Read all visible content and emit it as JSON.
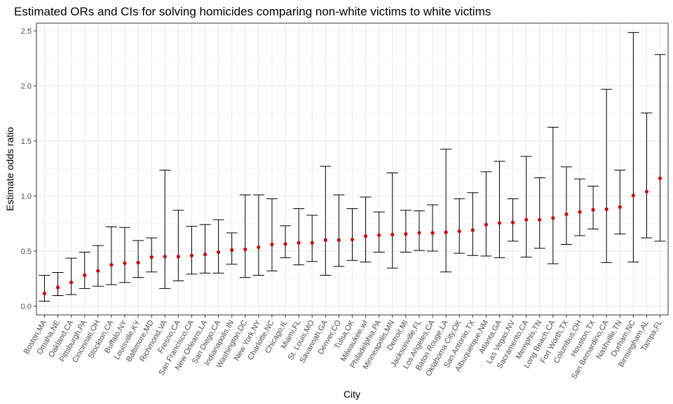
{
  "chart_data": {
    "type": "scatter",
    "title": "Estimated ORs and CIs for solving homicides comparing non-white victims to white victims",
    "xlabel": "City",
    "ylabel": "Estimate odds ratio",
    "ylim": [
      -0.08,
      2.57
    ],
    "yticks": [
      0.0,
      0.5,
      1.0,
      1.5,
      2.0,
      2.5
    ],
    "ytick_labels": [
      "0.0",
      "0.5",
      "1.0",
      "1.5",
      "2.0",
      "2.5"
    ],
    "grid": true,
    "point_color": "#cc0000",
    "errorbar_color": "#000000",
    "categories": [
      "Boston,MA",
      "Omaha,NE",
      "Oakland,CA",
      "Pittsburgh,PA",
      "Cincinnati,OH",
      "Stockton,CA",
      "Buffalo,NY",
      "Louisville,KY",
      "Baltimore,MD",
      "Richmond,VA",
      "Fresno,CA",
      "San Francisco,CA",
      "New Orleans,LA",
      "San Diego,CA",
      "Indianapolis,IN",
      "Washington,DC",
      "New York,NY",
      "Charlotte,NC",
      "Chicago,IL",
      "Miami,FL",
      "St. Louis,MO",
      "Savannah,GA",
      "Denver,CO",
      "Tulsa,OK",
      "Milwaukee,wI",
      "Philadelphia,PA",
      "Minneapolis,MN",
      "Detroit,MI",
      "Jacksonville,FL",
      "Los Angeles,CA",
      "Baton Rouge,LA",
      "Oklahoma City,OK",
      "San Antonio,TX",
      "Albuquerque,NM",
      "Atlanta,GA",
      "Las Vegas,NV",
      "Sacramento,CA",
      "Memphis,TN",
      "Long Beach,CA",
      "Fort Worth,TX",
      "Columbus,OH",
      "Houston,TX",
      "San Bernardino,CA",
      "Nashville,TN",
      "Durham,NC",
      "Birmingham,AL",
      "Tampa,FL"
    ],
    "estimate": [
      0.115,
      0.17,
      0.215,
      0.28,
      0.32,
      0.375,
      0.39,
      0.395,
      0.445,
      0.45,
      0.45,
      0.46,
      0.47,
      0.49,
      0.51,
      0.515,
      0.535,
      0.56,
      0.565,
      0.575,
      0.575,
      0.6,
      0.6,
      0.605,
      0.635,
      0.645,
      0.65,
      0.655,
      0.665,
      0.665,
      0.67,
      0.68,
      0.69,
      0.74,
      0.755,
      0.76,
      0.785,
      0.785,
      0.8,
      0.835,
      0.855,
      0.875,
      0.88,
      0.9,
      1.005,
      1.04,
      1.16
    ],
    "ci_low": [
      0.045,
      0.095,
      0.105,
      0.16,
      0.18,
      0.195,
      0.215,
      0.26,
      0.31,
      0.16,
      0.23,
      0.29,
      0.3,
      0.3,
      0.38,
      0.26,
      0.28,
      0.32,
      0.44,
      0.375,
      0.405,
      0.28,
      0.36,
      0.415,
      0.4,
      0.49,
      0.345,
      0.49,
      0.505,
      0.5,
      0.31,
      0.48,
      0.46,
      0.455,
      0.44,
      0.59,
      0.445,
      0.525,
      0.385,
      0.56,
      0.64,
      0.7,
      0.395,
      0.655,
      0.4,
      0.62,
      0.59
    ],
    "ci_high": [
      0.28,
      0.305,
      0.435,
      0.49,
      0.55,
      0.72,
      0.715,
      0.595,
      0.62,
      1.235,
      0.87,
      0.725,
      0.74,
      0.785,
      0.665,
      1.01,
      1.01,
      0.975,
      0.73,
      0.885,
      0.825,
      1.27,
      1.01,
      0.885,
      0.99,
      0.855,
      1.21,
      0.87,
      0.865,
      0.92,
      1.425,
      0.975,
      1.03,
      1.22,
      1.315,
      0.975,
      1.36,
      1.165,
      1.625,
      1.265,
      1.155,
      1.09,
      1.97,
      1.235,
      2.485,
      1.755,
      2.285
    ]
  }
}
